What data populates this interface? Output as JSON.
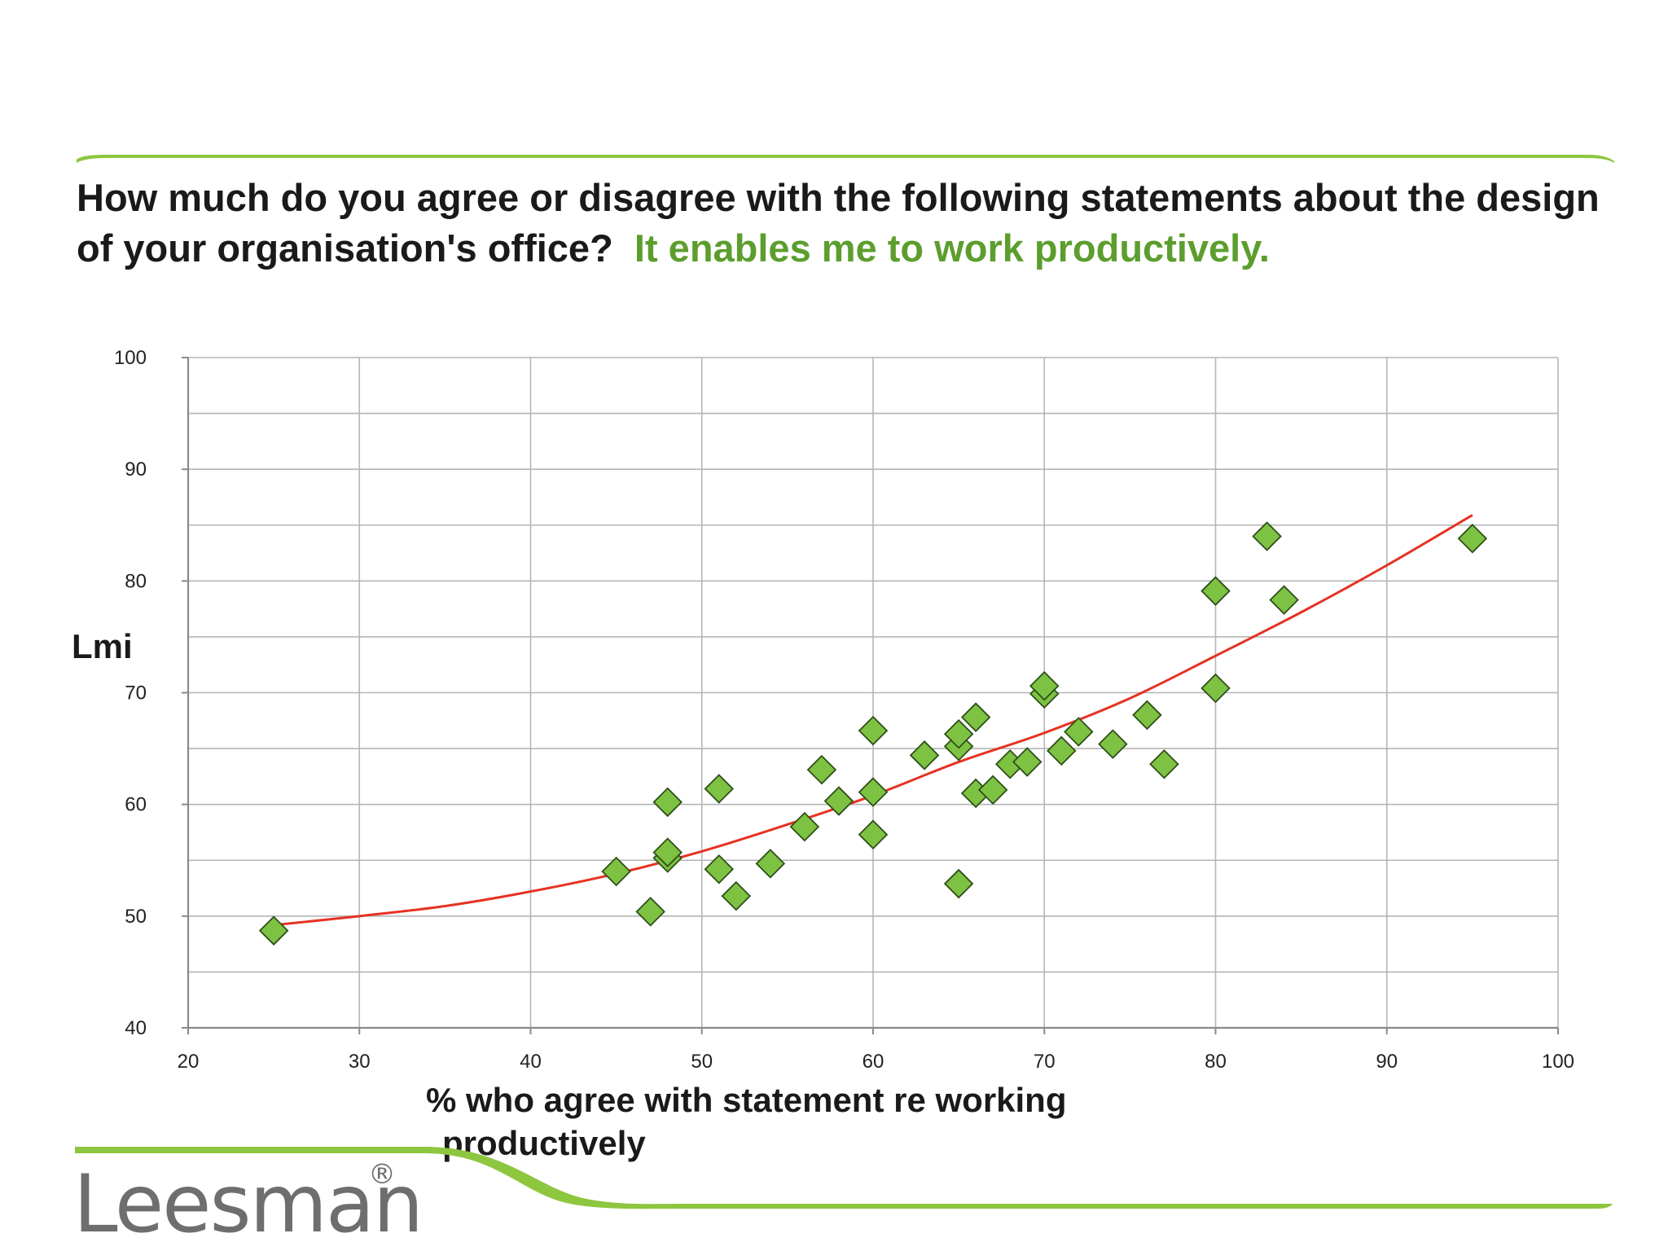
{
  "question": {
    "text": "How much do you agree or disagree with the following statements about the design of your organisation's office?",
    "highlight": "It enables me to work productively."
  },
  "colors": {
    "accent_green": "#8dc63f",
    "highlight_text": "#5c9e2e",
    "marker_fill": "#7dc242",
    "marker_stroke": "#2f4f1a",
    "trend_line": "#e53222",
    "grid": "#b5b5b5",
    "axis": "#8a8a8a",
    "logo": "#6d6e70"
  },
  "logo": {
    "text": "Leesman",
    "registered": "®"
  },
  "chart_data": {
    "type": "scatter",
    "xlabel": "% who agree with statement re working productively",
    "ylabel": "Lmi",
    "xlim": [
      20,
      100
    ],
    "ylim": [
      40,
      100
    ],
    "x_ticks": [
      20,
      30,
      40,
      50,
      60,
      70,
      80,
      90,
      100
    ],
    "y_ticks": [
      40,
      50,
      60,
      70,
      80,
      90,
      100
    ],
    "grid": true,
    "points": [
      {
        "x": 25,
        "y": 48.7
      },
      {
        "x": 45,
        "y": 54.0
      },
      {
        "x": 47,
        "y": 50.4
      },
      {
        "x": 48,
        "y": 55.2
      },
      {
        "x": 48,
        "y": 55.7
      },
      {
        "x": 48,
        "y": 60.2
      },
      {
        "x": 51,
        "y": 61.4
      },
      {
        "x": 51,
        "y": 54.2
      },
      {
        "x": 52,
        "y": 51.8
      },
      {
        "x": 54,
        "y": 54.7
      },
      {
        "x": 56,
        "y": 58.0
      },
      {
        "x": 57,
        "y": 63.1
      },
      {
        "x": 58,
        "y": 60.3
      },
      {
        "x": 60,
        "y": 66.6
      },
      {
        "x": 60,
        "y": 61.1
      },
      {
        "x": 60,
        "y": 57.3
      },
      {
        "x": 63,
        "y": 64.4
      },
      {
        "x": 65,
        "y": 65.2
      },
      {
        "x": 65,
        "y": 66.3
      },
      {
        "x": 65,
        "y": 52.9
      },
      {
        "x": 66,
        "y": 67.8
      },
      {
        "x": 66,
        "y": 61.0
      },
      {
        "x": 67,
        "y": 61.3
      },
      {
        "x": 68,
        "y": 63.6
      },
      {
        "x": 69,
        "y": 63.8
      },
      {
        "x": 70,
        "y": 69.9
      },
      {
        "x": 70,
        "y": 70.6
      },
      {
        "x": 71,
        "y": 64.8
      },
      {
        "x": 72,
        "y": 66.5
      },
      {
        "x": 74,
        "y": 65.4
      },
      {
        "x": 76,
        "y": 68.0
      },
      {
        "x": 77,
        "y": 63.6
      },
      {
        "x": 80,
        "y": 79.1
      },
      {
        "x": 80,
        "y": 70.4
      },
      {
        "x": 83,
        "y": 84.0
      },
      {
        "x": 84,
        "y": 78.3
      },
      {
        "x": 95,
        "y": 83.8
      }
    ],
    "trendline": {
      "type": "polynomial",
      "points": [
        {
          "x": 25,
          "y": 49.2
        },
        {
          "x": 30,
          "y": 50.0
        },
        {
          "x": 35,
          "y": 50.9
        },
        {
          "x": 40,
          "y": 52.2
        },
        {
          "x": 45,
          "y": 53.8
        },
        {
          "x": 50,
          "y": 55.8
        },
        {
          "x": 55,
          "y": 58.2
        },
        {
          "x": 60,
          "y": 60.8
        },
        {
          "x": 65,
          "y": 63.8
        },
        {
          "x": 70,
          "y": 66.4
        },
        {
          "x": 75,
          "y": 69.5
        },
        {
          "x": 80,
          "y": 73.3
        },
        {
          "x": 85,
          "y": 77.2
        },
        {
          "x": 90,
          "y": 81.4
        },
        {
          "x": 95,
          "y": 85.9
        }
      ]
    }
  }
}
